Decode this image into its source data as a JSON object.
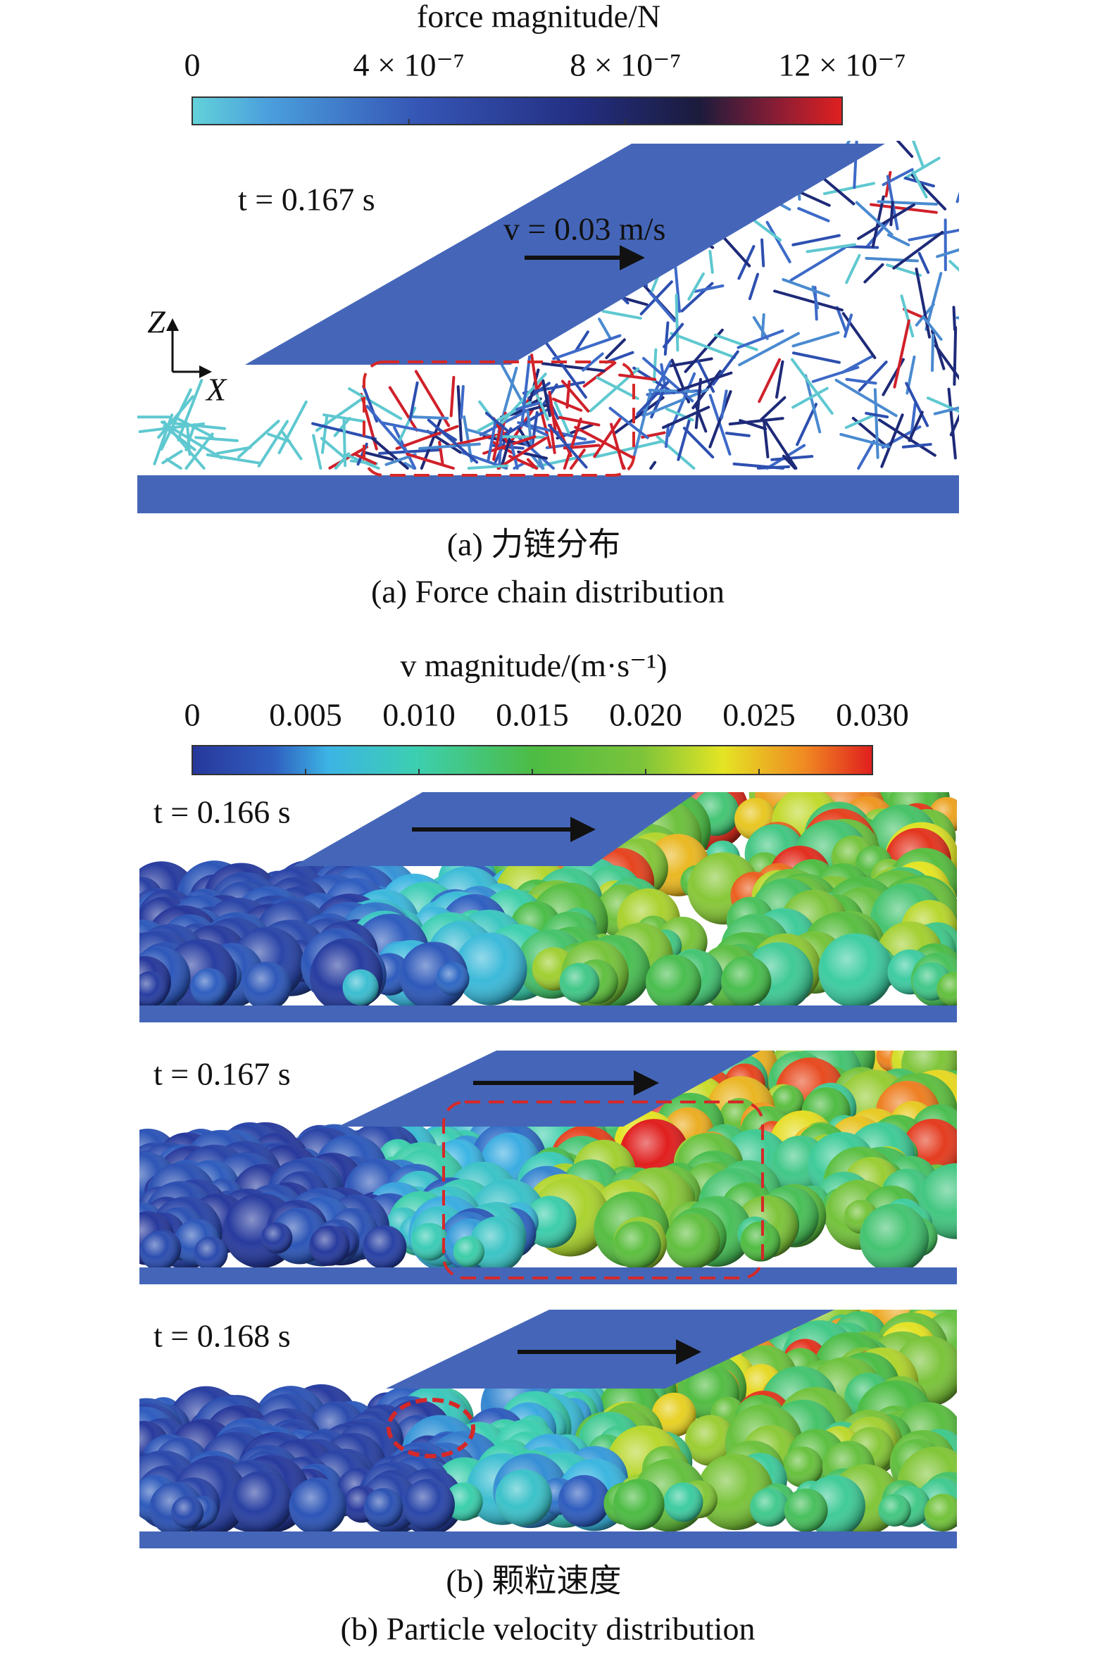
{
  "panel_a": {
    "colorbar": {
      "title": "force magnitude/N",
      "ticks": [
        "0",
        "4 × 10⁻⁷",
        "8 × 10⁻⁷",
        "12 × 10⁻⁷"
      ]
    },
    "time_label": "t = 0.167 s",
    "velocity_label": "v = 0.03 m/s",
    "axis_z": "Z",
    "axis_x": "X",
    "caption_zh": "(a) 力链分布",
    "caption_en": "(a) Force chain distribution"
  },
  "panel_b": {
    "colorbar": {
      "title": "v magnitude/(m·s⁻¹)",
      "ticks": [
        "0",
        "0.005",
        "0.010",
        "0.015",
        "0.020",
        "0.025",
        "0.030"
      ]
    },
    "frames": [
      {
        "time_label": "t = 0.166 s"
      },
      {
        "time_label": "t = 0.167 s"
      },
      {
        "time_label": "t = 0.168 s"
      }
    ],
    "caption_zh": "(b) 颗粒速度",
    "caption_en": "(b) Particle velocity distribution"
  }
}
